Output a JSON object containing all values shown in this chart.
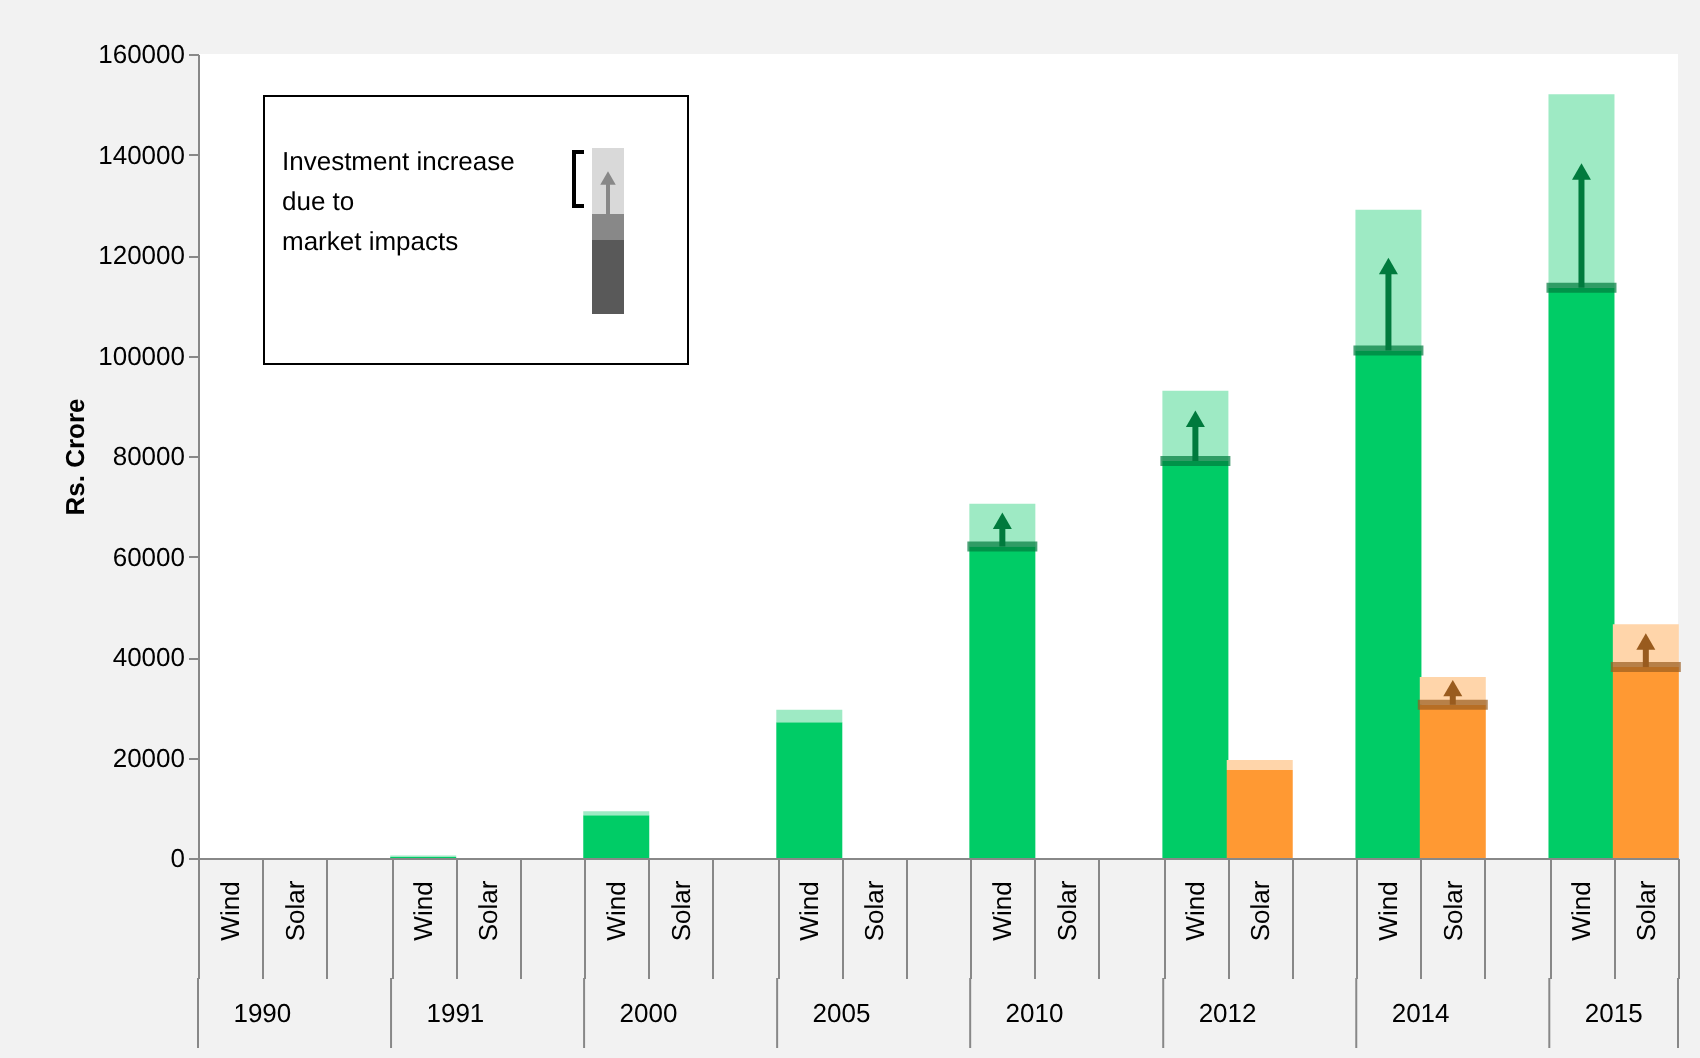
{
  "chart_data": {
    "type": "bar",
    "stacked": true,
    "ylabel": "Rs. Crore",
    "categories": [
      "Wind",
      "Solar",
      null,
      "Wind",
      "Solar",
      null,
      "Wind",
      "Solar",
      null,
      "Wind",
      "Solar",
      null,
      "Wind",
      "Solar",
      null,
      "Wind",
      "Solar",
      null,
      "Wind",
      "Solar",
      null,
      "Wind",
      "Solar"
    ],
    "series": [
      {
        "colors": [
          "#00cc66",
          "#ff9933",
          null,
          "#00cc66",
          "#ff9933",
          null,
          "#00cc66",
          "#ff9933",
          null,
          "#00cc66",
          "#ff9933",
          null,
          "#00cc66",
          "#ff9933",
          null,
          "#00cc66",
          "#ff9933",
          null,
          "#00cc66",
          "#ff9933",
          null,
          "#00cc66",
          "#ff9933"
        ],
        "values": [
          0,
          0,
          null,
          200,
          0,
          null,
          8500,
          0,
          null,
          27000,
          0,
          null,
          62000,
          0,
          null,
          79000,
          17500,
          null,
          101000,
          30500,
          null,
          113500,
          38000
        ]
      },
      {
        "colors": [
          "#9eeac4",
          "#ffd5aa",
          null,
          "#9eeac4",
          "#ffd5aa",
          null,
          "#9eeac4",
          "#ffd5aa",
          null,
          "#9eeac4",
          "#ffd5aa",
          null,
          "#9eeac4",
          "#ffd5aa",
          null,
          "#9eeac4",
          "#ffd5aa",
          null,
          "#9eeac4",
          "#ffd5aa",
          null,
          "#9eeac4",
          "#ffd5aa"
        ],
        "values": [
          0,
          0,
          null,
          300,
          0,
          null,
          800,
          0,
          null,
          2500,
          0,
          null,
          8500,
          0,
          null,
          14000,
          2000,
          null,
          28000,
          5500,
          null,
          38500,
          8500
        ]
      }
    ],
    "ylim": [
      0,
      160000
    ],
    "yticks": [
      0,
      20000,
      40000,
      60000,
      80000,
      100000,
      120000,
      140000,
      160000
    ],
    "grid": false,
    "annotations": [
      "1990",
      "1991",
      "2000",
      "2005",
      "2010",
      "2012",
      "2014",
      "2015",
      "Investment increase\ndue to\nmarket impacts"
    ]
  }
}
